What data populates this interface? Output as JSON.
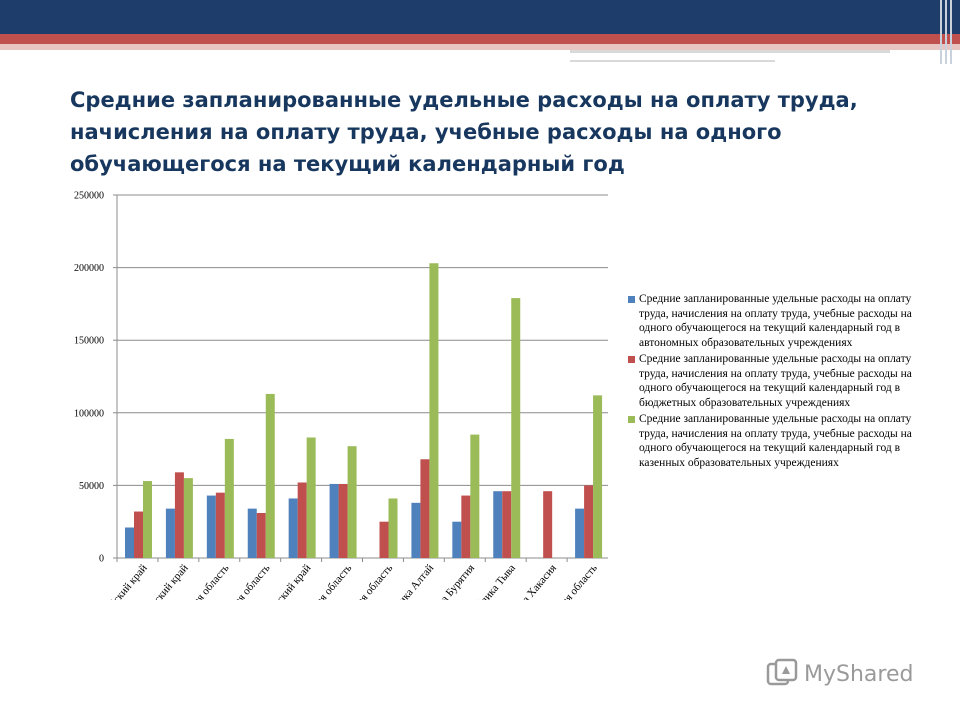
{
  "slide": {
    "title": "Средние запланированные удельные расходы на оплату труда, начисления на оплату труда, учебные расходы на одного обучающегося на текущий календарный  год"
  },
  "watermark": {
    "text": "MyShared",
    "icon": "myshared-logo-icon"
  },
  "colors": {
    "series_blue": "#4f81bd",
    "series_red": "#c0504d",
    "series_green": "#9bbb59",
    "header_navy": "#1f3d6b",
    "title": "#17375e"
  },
  "chart_data": {
    "type": "bar",
    "title": "",
    "xlabel": "",
    "ylabel": "",
    "ylim": [
      0,
      250000
    ],
    "yticks": [
      0,
      50000,
      100000,
      150000,
      200000,
      250000
    ],
    "ytick_labels": [
      "0",
      "50000",
      "100000",
      "150000",
      "200000",
      "250000"
    ],
    "grid": true,
    "legend_position": "right",
    "categories": [
      "Алтайский край",
      "Забайкальский край",
      "Иркутская область",
      "Кемеровская область",
      "Красноярский край",
      "Новосибирская область",
      "Омская область",
      "Республика Алтай",
      "Республика Бурятия",
      "Республика Тыва",
      "Республика Хакасия",
      "Томская область"
    ],
    "series": [
      {
        "name": "Средние запланированные удельные расходы на оплату труда, начисления на оплату труда, учебные расходы на одного обучающегося на текущий календарный год в автономных образовательных учреждениях",
        "color": "#4f81bd",
        "values": [
          21000,
          34000,
          43000,
          34000,
          41000,
          51000,
          0,
          38000,
          25000,
          46000,
          0,
          34000
        ]
      },
      {
        "name": "Средние запланированные удельные расходы на оплату труда, начисления на оплату труда, учебные расходы на одного обучающегося на текущий календарный год в бюджетных образовательных учреждениях",
        "color": "#c0504d",
        "values": [
          32000,
          59000,
          45000,
          31000,
          52000,
          51000,
          25000,
          68000,
          43000,
          46000,
          46000,
          50000
        ]
      },
      {
        "name": "Средние запланированные удельные расходы на оплату труда, начисления на оплату труда, учебные расходы на одного обучающегося на текущий календарный год в казенных образовательных учреждениях",
        "color": "#9bbb59",
        "values": [
          53000,
          55000,
          82000,
          113000,
          83000,
          77000,
          41000,
          203000,
          85000,
          179000,
          0,
          112000
        ]
      }
    ]
  }
}
